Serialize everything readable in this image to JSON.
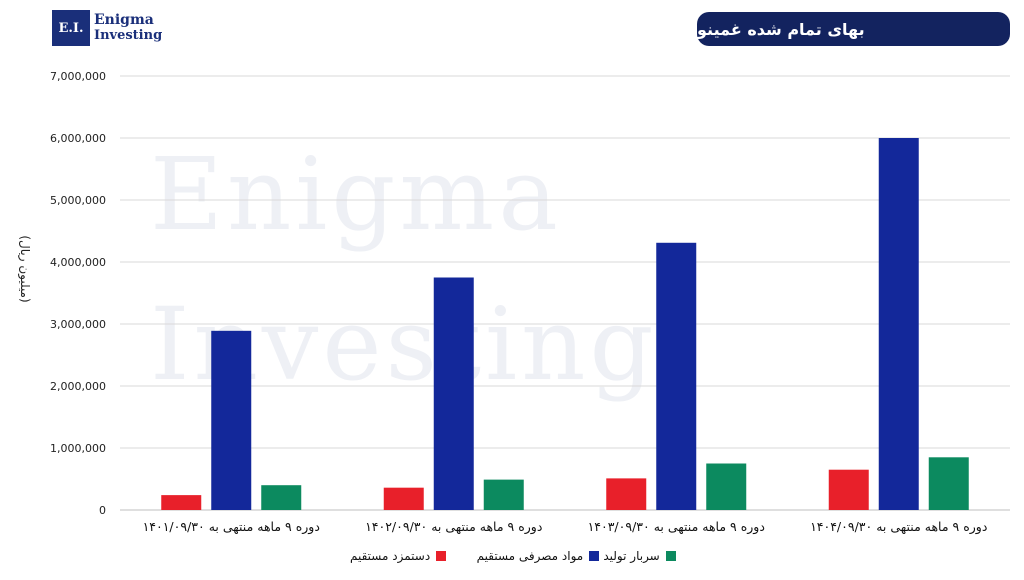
{
  "logo": {
    "mark": "E.I.",
    "line1": "Enigma",
    "line2": "Investing"
  },
  "watermark": {
    "line1": "Enigma",
    "line2": "Investing"
  },
  "chart_data": {
    "type": "bar",
    "title": "بهای تمام شده غمینو",
    "ylabel": "(میلیون ریال)",
    "xlabel": "",
    "ylim": [
      0,
      7000000
    ],
    "yticks": [
      0,
      1000000,
      2000000,
      3000000,
      4000000,
      5000000,
      6000000,
      7000000
    ],
    "ytick_labels": [
      "0",
      "1,000,000",
      "2,000,000",
      "3,000,000",
      "4,000,000",
      "5,000,000",
      "6,000,000",
      "7,000,000"
    ],
    "categories": [
      "دوره ۹ ماهه منتهی به ۱۴۰۱/۰۹/۳۰",
      "دوره ۹ ماهه منتهی به ۱۴۰۲/۰۹/۳۰",
      "دوره ۹ ماهه منتهی به ۱۴۰۳/۰۹/۳۰",
      "دوره ۹ ماهه منتهی به ۱۴۰۴/۰۹/۳۰"
    ],
    "series": [
      {
        "name": "دستمزد مستقیم",
        "color": "#e8202a",
        "values": [
          240000,
          360000,
          510000,
          650000
        ]
      },
      {
        "name": "مواد مصرفی مستقیم",
        "color": "#13289a",
        "values": [
          2890000,
          3750000,
          4310000,
          6000000
        ]
      },
      {
        "name": "سربار تولید",
        "color": "#0c8a5f",
        "values": [
          400000,
          490000,
          750000,
          850000
        ]
      }
    ],
    "grid": true,
    "legend_position": "bottom"
  }
}
